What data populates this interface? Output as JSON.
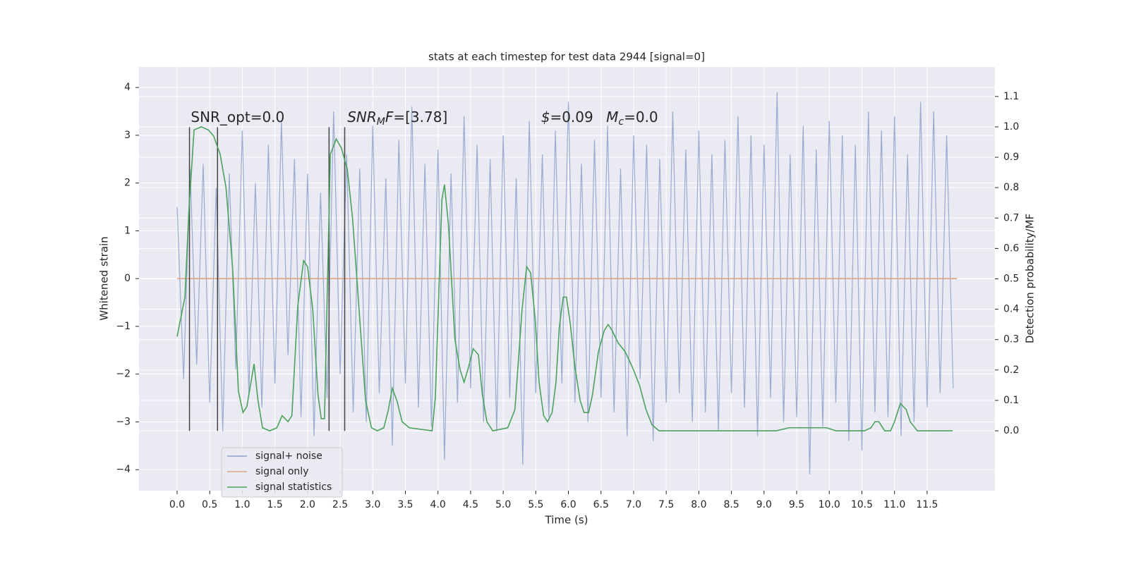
{
  "chart_data": {
    "type": "line",
    "title": "stats at each timestep for test data 2944 [signal=0]",
    "xlabel": "Time (s)",
    "ylabel": "Whitened strain",
    "y2label": "Detection probability/MF",
    "xlim": [
      -0.584,
      12.54
    ],
    "ylim": [
      -4.44,
      4.43
    ],
    "y2lim": [
      -0.197,
      1.197
    ],
    "xticks": [
      {
        "value": 0,
        "label": "0.0"
      },
      {
        "value": 0.5,
        "label": "0.5"
      },
      {
        "value": 1,
        "label": "1.0"
      },
      {
        "value": 1.5,
        "label": "1.5"
      },
      {
        "value": 2,
        "label": "2.0"
      },
      {
        "value": 2.5,
        "label": "2.5"
      },
      {
        "value": 3,
        "label": "3.0"
      },
      {
        "value": 3.5,
        "label": "3.5"
      },
      {
        "value": 4,
        "label": "4.0"
      },
      {
        "value": 4.5,
        "label": "4.5"
      },
      {
        "value": 5,
        "label": "5.0"
      },
      {
        "value": 5.5,
        "label": "5.5"
      },
      {
        "value": 6,
        "label": "6.0"
      },
      {
        "value": 6.5,
        "label": "6.5"
      },
      {
        "value": 7,
        "label": "7.0"
      },
      {
        "value": 7.5,
        "label": "7.5"
      },
      {
        "value": 8,
        "label": "8.0"
      },
      {
        "value": 8.5,
        "label": "8.5"
      },
      {
        "value": 9,
        "label": "9.0"
      },
      {
        "value": 9.5,
        "label": "9.5"
      },
      {
        "value": 10,
        "label": "10.0"
      },
      {
        "value": 10.5,
        "label": "10.5"
      },
      {
        "value": 11,
        "label": "11.0"
      },
      {
        "value": 11.5,
        "label": "11.5"
      }
    ],
    "yticks": [
      {
        "value": -4,
        "label": "−4"
      },
      {
        "value": -3,
        "label": "−3"
      },
      {
        "value": -2,
        "label": "−2"
      },
      {
        "value": -1,
        "label": "−1"
      },
      0,
      1,
      2,
      3,
      4
    ],
    "y2ticks": [
      {
        "value": 0,
        "label": "0.0"
      },
      {
        "value": 0.1,
        "label": "0.1"
      },
      {
        "value": 0.2,
        "label": "0.2"
      },
      {
        "value": 0.3,
        "label": "0.3"
      },
      {
        "value": 0.4,
        "label": "0.4"
      },
      {
        "value": 0.5,
        "label": "0.5"
      },
      {
        "value": 0.6,
        "label": "0.6"
      },
      {
        "value": 0.7,
        "label": "0.7"
      },
      {
        "value": 0.8,
        "label": "0.8"
      },
      {
        "value": 0.9,
        "label": "0.9"
      },
      {
        "value": 1,
        "label": "1.0"
      },
      {
        "value": 1.1,
        "label": "1.1"
      }
    ],
    "grid": true,
    "legend": "lower left",
    "series": [
      {
        "name": "signal+ noise",
        "color": "#8c9fcb",
        "x": [
          0.0,
          0.1,
          0.2,
          0.3,
          0.4,
          0.5,
          0.6,
          0.7,
          0.8,
          0.9,
          1.0,
          1.1,
          1.2,
          1.3,
          1.4,
          1.5,
          1.6,
          1.7,
          1.8,
          1.9,
          2.0,
          2.1,
          2.2,
          2.3,
          2.4,
          2.5,
          2.6,
          2.7,
          2.8,
          2.9,
          3.0,
          3.1,
          3.2,
          3.3,
          3.4,
          3.5,
          3.6,
          3.7,
          3.8,
          3.9,
          4.0,
          4.1,
          4.2,
          4.3,
          4.4,
          4.5,
          4.6,
          4.7,
          4.8,
          4.9,
          5.0,
          5.1,
          5.2,
          5.3,
          5.4,
          5.5,
          5.6,
          5.7,
          5.8,
          5.9,
          6.0,
          6.1,
          6.2,
          6.3,
          6.4,
          6.5,
          6.6,
          6.7,
          6.8,
          6.9,
          7.0,
          7.1,
          7.2,
          7.3,
          7.4,
          7.5,
          7.6,
          7.7,
          7.8,
          7.9,
          8.0,
          8.1,
          8.2,
          8.3,
          8.4,
          8.5,
          8.6,
          8.7,
          8.8,
          8.9,
          9.0,
          9.1,
          9.2,
          9.3,
          9.4,
          9.5,
          9.6,
          9.7,
          9.8,
          9.9,
          10.0,
          10.1,
          10.2,
          10.3,
          10.4,
          10.5,
          10.6,
          10.7,
          10.8,
          10.9,
          11.0,
          11.1,
          11.2,
          11.3,
          11.4,
          11.5,
          11.6,
          11.7,
          11.8,
          11.9
        ],
        "values": [
          1.5,
          -2.1,
          2.3,
          -1.8,
          2.4,
          -2.6,
          1.9,
          -3.2,
          2.2,
          -1.9,
          3.1,
          -2.4,
          2.0,
          -2.7,
          2.8,
          -2.2,
          3.3,
          -1.6,
          2.5,
          -2.9,
          2.2,
          -3.3,
          1.8,
          -2.5,
          3.5,
          -2.0,
          2.6,
          -2.8,
          2.3,
          -3.0,
          3.2,
          -2.4,
          2.1,
          -3.5,
          2.9,
          -2.2,
          3.6,
          -2.7,
          2.4,
          -3.1,
          2.7,
          -3.8,
          2.2,
          -2.6,
          3.4,
          -2.3,
          2.8,
          -3.0,
          2.5,
          -3.2,
          3.0,
          -2.5,
          2.1,
          -3.9,
          3.3,
          -2.4,
          2.6,
          -2.9,
          3.1,
          -2.2,
          3.7,
          -2.6,
          2.4,
          -3.0,
          2.9,
          -2.5,
          3.2,
          -2.8,
          2.3,
          -3.3,
          3.0,
          -2.1,
          2.8,
          -3.4,
          2.5,
          -2.6,
          3.5,
          -2.4,
          2.7,
          -3.0,
          3.1,
          -2.8,
          2.6,
          -3.2,
          2.9,
          -2.4,
          3.4,
          -2.7,
          3.0,
          -3.3,
          2.8,
          -2.5,
          3.9,
          -3.0,
          2.6,
          -2.9,
          3.2,
          -4.1,
          2.7,
          -3.1,
          3.3,
          -2.6,
          3.0,
          -3.4,
          2.8,
          -3.6,
          3.5,
          -2.8,
          3.1,
          -2.9,
          3.4,
          -3.3,
          2.6,
          -3.0,
          3.7,
          -2.7,
          3.5,
          -2.4,
          3.0,
          -2.3
        ]
      },
      {
        "name": "signal only",
        "color": "#e0a487",
        "x": [
          0.0,
          11.96
        ],
        "values": [
          0,
          0
        ]
      },
      {
        "name": "signal statistics",
        "color": "#4aa25c",
        "axis": "y2",
        "x": [
          0,
          0.12,
          0.18,
          0.26,
          0.37,
          0.48,
          0.56,
          0.66,
          0.75,
          0.85,
          0.94,
          1.01,
          1.07,
          1.18,
          1.24,
          1.31,
          1.42,
          1.53,
          1.61,
          1.7,
          1.76,
          1.85,
          1.94,
          2.0,
          2.08,
          2.16,
          2.21,
          2.26,
          2.35,
          2.44,
          2.52,
          2.61,
          2.69,
          2.8,
          2.89,
          2.98,
          3.07,
          3.17,
          3.24,
          3.3,
          3.37,
          3.45,
          3.56,
          3.91,
          3.96,
          4.06,
          4.1,
          4.16,
          4.26,
          4.34,
          4.4,
          4.47,
          4.54,
          4.62,
          4.68,
          4.75,
          4.84,
          5.07,
          5.18,
          5.29,
          5.36,
          5.42,
          5.49,
          5.55,
          5.62,
          5.68,
          5.75,
          5.81,
          5.86,
          5.92,
          5.97,
          6.03,
          6.1,
          6.18,
          6.24,
          6.31,
          6.37,
          6.46,
          6.55,
          6.61,
          6.67,
          6.76,
          6.87,
          6.98,
          7.09,
          7.19,
          7.28,
          7.39,
          8.21,
          9.19,
          9.38,
          9.49,
          9.6,
          9.83,
          9.96,
          10.1,
          10.54,
          10.64,
          10.7,
          10.76,
          10.85,
          10.94,
          11.0,
          11.09,
          11.18,
          11.24,
          11.35,
          11.89
        ],
        "values": [
          0.31,
          0.44,
          0.72,
          0.99,
          1.0,
          0.99,
          0.97,
          0.91,
          0.8,
          0.54,
          0.13,
          0.06,
          0.08,
          0.22,
          0.1,
          0.01,
          0.0,
          0.01,
          0.05,
          0.03,
          0.05,
          0.41,
          0.56,
          0.54,
          0.4,
          0.12,
          0.04,
          0.04,
          0.91,
          0.96,
          0.93,
          0.86,
          0.7,
          0.37,
          0.1,
          0.01,
          0.0,
          0.01,
          0.07,
          0.14,
          0.1,
          0.03,
          0.01,
          0.0,
          0.11,
          0.76,
          0.81,
          0.68,
          0.3,
          0.2,
          0.16,
          0.21,
          0.27,
          0.25,
          0.12,
          0.03,
          0.0,
          0.01,
          0.07,
          0.4,
          0.54,
          0.52,
          0.37,
          0.16,
          0.05,
          0.03,
          0.06,
          0.16,
          0.34,
          0.44,
          0.44,
          0.35,
          0.21,
          0.1,
          0.06,
          0.06,
          0.12,
          0.26,
          0.33,
          0.35,
          0.33,
          0.29,
          0.26,
          0.21,
          0.15,
          0.07,
          0.02,
          0.0,
          0.0,
          0.0,
          0.01,
          0.01,
          0.01,
          0.01,
          0.01,
          0.0,
          0.0,
          0.01,
          0.03,
          0.03,
          0.0,
          0.0,
          0.03,
          0.09,
          0.07,
          0.03,
          0.0,
          0.0
        ]
      }
    ],
    "vlines": {
      "x": [
        0.19,
        0.62,
        2.33,
        2.57
      ],
      "ymin": -3.19,
      "ymax": 3.17,
      "color": "#444444"
    },
    "annotations": [
      {
        "x": 0.21,
        "y": 3.28,
        "parts": [
          {
            "text": "SNR_opt=0.0"
          }
        ]
      },
      {
        "x": 2.61,
        "y": 3.28,
        "parts": [
          {
            "text": "SNR",
            "italic": true
          },
          {
            "text": "M",
            "italic": true,
            "sub": true
          },
          {
            "text": "F",
            "italic": true
          },
          {
            "text": "=[3.78]"
          }
        ]
      },
      {
        "x": 5.58,
        "y": 3.28,
        "parts": [
          {
            "text": "$",
            "italic": true
          },
          {
            "text": "=0.09"
          }
        ]
      },
      {
        "x": 6.58,
        "y": 3.28,
        "parts": [
          {
            "text": "M",
            "italic": true
          },
          {
            "text": "c",
            "italic": true,
            "sub": true
          },
          {
            "text": "=0.0"
          }
        ]
      }
    ]
  }
}
